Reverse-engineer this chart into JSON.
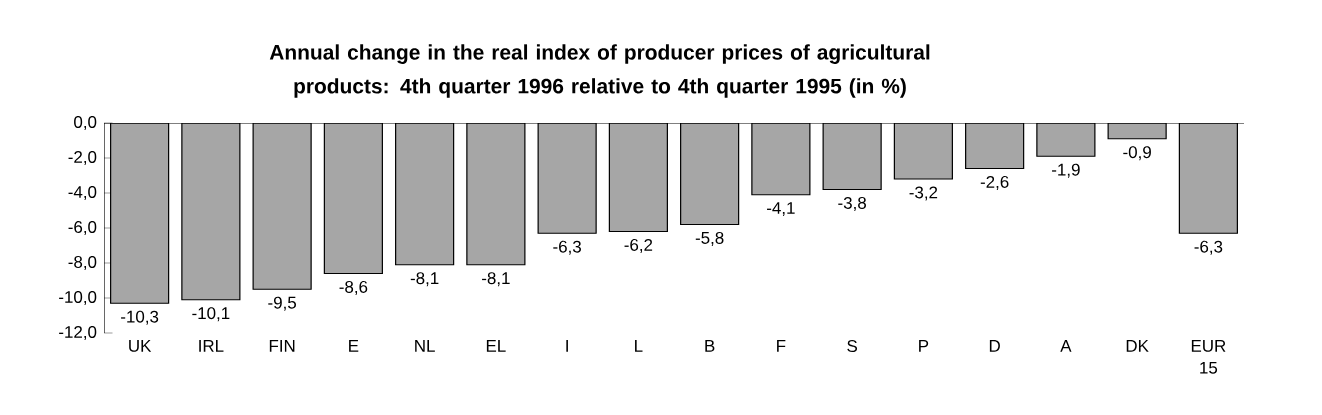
{
  "chart_data": {
    "type": "bar",
    "title": "Annual change in the real index of producer prices of agricultural products: 4th quarter 1996 relative to 4th quarter 1995 (in %)",
    "categories": [
      "UK",
      "IRL",
      "FIN",
      "E",
      "NL",
      "EL",
      "I",
      "L",
      "B",
      "F",
      "S",
      "P",
      "D",
      "A",
      "DK",
      "EUR 15"
    ],
    "values": [
      -10.3,
      -10.1,
      -9.5,
      -8.6,
      -8.1,
      -8.1,
      -6.3,
      -6.2,
      -5.8,
      -4.1,
      -3.8,
      -3.2,
      -2.6,
      -1.9,
      -0.9,
      -6.3
    ],
    "value_labels": [
      "-10,3",
      "-10,1",
      "-9,5",
      "-8,6",
      "-8,1",
      "-8,1",
      "-6,3",
      "-6,2",
      "-5,8",
      "-4,1",
      "-3,8",
      "-3,2",
      "-2,6",
      "-1,9",
      "-0,9",
      "-6,3"
    ],
    "color": "#a6a6a6",
    "ylim": [
      -12,
      0
    ],
    "yticks": [
      {
        "value": 0,
        "label": "0,0"
      },
      {
        "value": -2,
        "label": "-2,0"
      },
      {
        "value": -4,
        "label": "-4,0"
      },
      {
        "value": -6,
        "label": "-6,0"
      },
      {
        "value": -8,
        "label": "-8,0"
      },
      {
        "value": -10,
        "label": "-10,0"
      },
      {
        "value": -12,
        "label": "-12,0"
      }
    ],
    "grid": false
  }
}
